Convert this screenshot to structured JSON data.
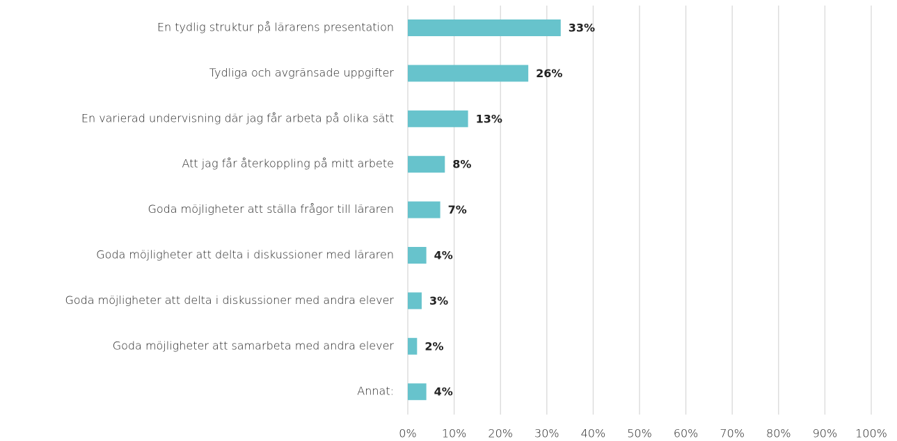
{
  "chart_data": {
    "type": "bar",
    "orientation": "horizontal",
    "categories": [
      "En tydlig struktur på lärarens presentation",
      "Tydliga och avgränsade uppgifter",
      "En varierad undervisning där jag får arbeta på olika sätt",
      "Att jag får återkoppling på mitt arbete",
      "Goda möjligheter att ställa frågor till läraren",
      "Goda möjligheter att delta i diskussioner med läraren",
      "Goda möjligheter att delta i diskussioner med andra elever",
      "Goda möjligheter att samarbeta med andra elever",
      "Annat:"
    ],
    "values": [
      33,
      26,
      13,
      8,
      7,
      4,
      3,
      2,
      4
    ],
    "value_labels": [
      "33%",
      "26%",
      "13%",
      "8%",
      "7%",
      "4%",
      "3%",
      "2%",
      "4%"
    ],
    "color": "#67c3cc",
    "xlim": [
      0,
      100
    ],
    "xticks": [
      {
        "value": 0,
        "label": "0%"
      },
      {
        "value": 10,
        "label": "10%"
      },
      {
        "value": 20,
        "label": "20%"
      },
      {
        "value": 30,
        "label": "30%"
      },
      {
        "value": 40,
        "label": "40%"
      },
      {
        "value": 50,
        "label": "50%"
      },
      {
        "value": 60,
        "label": "60%"
      },
      {
        "value": 70,
        "label": "70%"
      },
      {
        "value": 80,
        "label": "80%"
      },
      {
        "value": 90,
        "label": "90%"
      },
      {
        "value": 100,
        "label": "100%"
      }
    ],
    "grid": true
  }
}
